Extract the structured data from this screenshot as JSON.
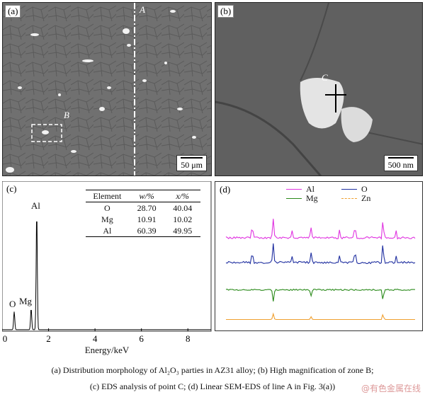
{
  "panels": {
    "a": {
      "tag": "(a)",
      "line_label": "A",
      "zone_label": "B",
      "scale_bar": "50 μm"
    },
    "b": {
      "tag": "(b)",
      "point_label": "C",
      "scale_bar": "500 nm"
    },
    "c": {
      "tag": "(c)",
      "table": {
        "headers": [
          "Element",
          "w/%",
          "x/%"
        ],
        "rows": [
          [
            "O",
            "28.70",
            "40.04"
          ],
          [
            "Mg",
            "10.91",
            "10.02"
          ],
          [
            "Al",
            "60.39",
            "49.95"
          ]
        ]
      }
    },
    "d": {
      "tag": "(d)"
    }
  },
  "chart_data": [
    {
      "type": "line",
      "panel": "c",
      "xlabel": "Energy/keV",
      "ylabel": "",
      "xlim": [
        0,
        9
      ],
      "x_ticks": [
        0,
        2,
        4,
        6,
        8
      ],
      "grid": false,
      "peaks": [
        {
          "label": "O",
          "energy": 0.52,
          "height": 0.12
        },
        {
          "label": "Mg",
          "energy": 1.25,
          "height": 0.14
        },
        {
          "label": "Al",
          "energy": 1.49,
          "height": 0.78
        }
      ],
      "colors": {
        "line": "#000000"
      }
    },
    {
      "type": "line",
      "panel": "d",
      "legend_placement": "top",
      "series": [
        {
          "name": "Al",
          "color": "#e033e0",
          "baseline": 0.72,
          "peak_direction": "up"
        },
        {
          "name": "O",
          "color": "#1f2fa0",
          "baseline": 0.52,
          "peak_direction": "up"
        },
        {
          "name": "Mg",
          "color": "#2a8a1a",
          "baseline": 0.3,
          "peak_direction": "down"
        },
        {
          "name": "Zn",
          "color": "#f0a030",
          "baseline": 0.06,
          "peak_direction": "up"
        }
      ],
      "feature_positions": [
        0.25,
        0.45,
        0.83
      ]
    }
  ],
  "caption": {
    "line1": "(a)  Distribution  morphology of Al₂O₃ parties in AZ31 alloy; (b) High magnification of zone B;",
    "line2": "(c) EDS analysis of point C; (d) Linear SEM-EDS of  line A in        Fig. 3(a))"
  },
  "watermark": "@有色金属在线"
}
